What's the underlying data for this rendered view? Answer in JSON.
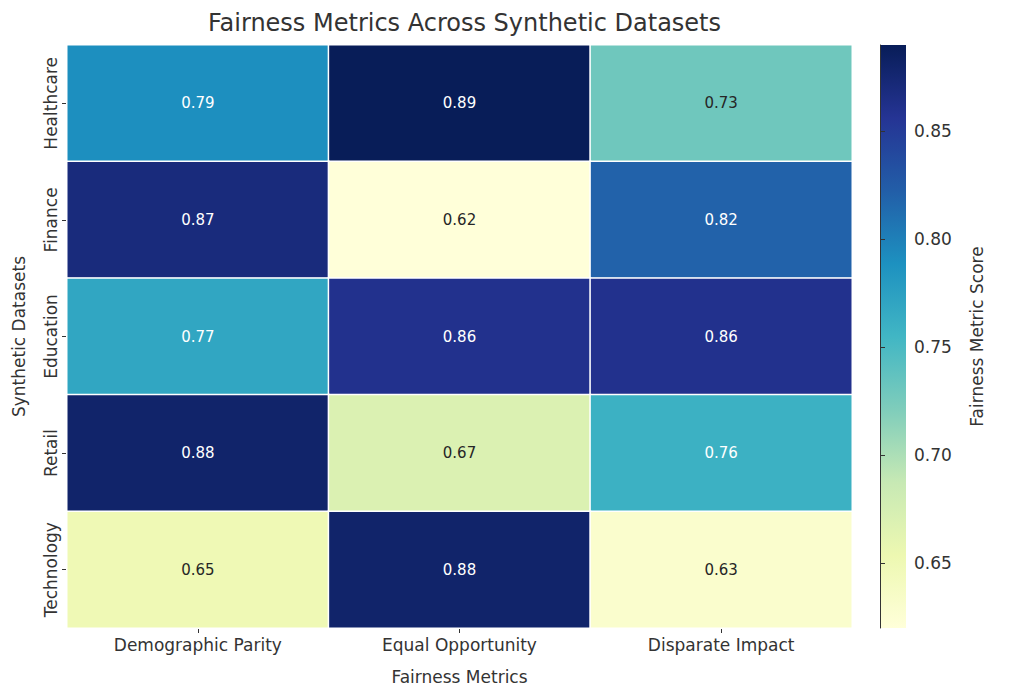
{
  "chart_data": {
    "type": "heatmap",
    "title": "Fairness Metrics Across Synthetic Datasets",
    "x_label": "Fairness Metrics",
    "y_label": "Synthetic Datasets",
    "x_categories": [
      "Demographic Parity",
      "Equal Opportunity",
      "Disparate Impact"
    ],
    "y_categories": [
      "Healthcare",
      "Finance",
      "Education",
      "Retail",
      "Technology"
    ],
    "cells": [
      [
        0.79,
        0.89,
        0.73
      ],
      [
        0.87,
        0.62,
        0.82
      ],
      [
        0.77,
        0.86,
        0.86
      ],
      [
        0.88,
        0.67,
        0.76
      ],
      [
        0.65,
        0.88,
        0.63
      ]
    ],
    "colorbar": {
      "label": "Fairness Metric Score",
      "range": [
        0.62,
        0.89
      ],
      "ticks": [
        0.65,
        {
          "value": 0.7,
          "label": "0.70"
        },
        0.75,
        {
          "value": 0.8,
          "label": "0.80"
        },
        0.85
      ]
    },
    "data_labels": true,
    "grid": false
  }
}
